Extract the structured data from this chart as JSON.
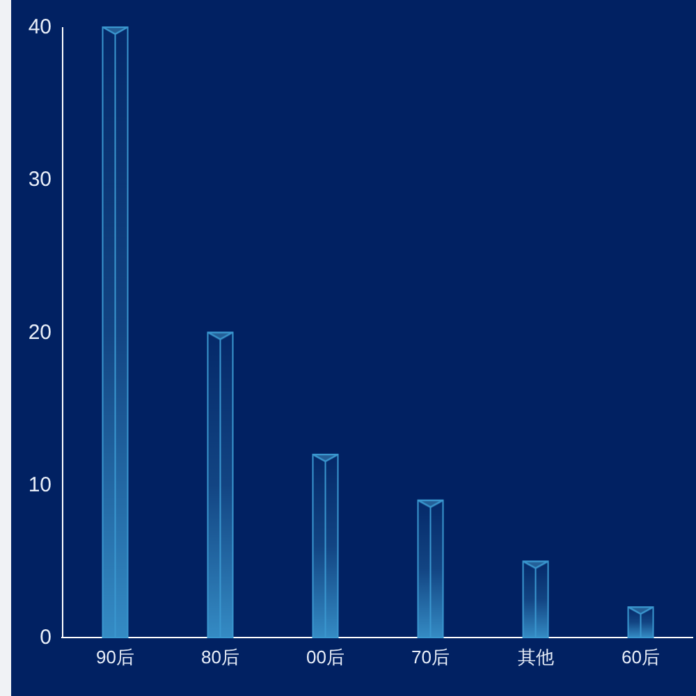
{
  "chart_data": {
    "type": "bar",
    "categories": [
      "90后",
      "80后",
      "00后",
      "70后",
      "其他",
      "60后"
    ],
    "values": [
      40,
      20,
      12,
      9,
      5,
      2
    ],
    "color": "#3a97cf",
    "ylim": [
      0,
      40
    ],
    "yticks": [
      0,
      10,
      20,
      30,
      40
    ]
  }
}
